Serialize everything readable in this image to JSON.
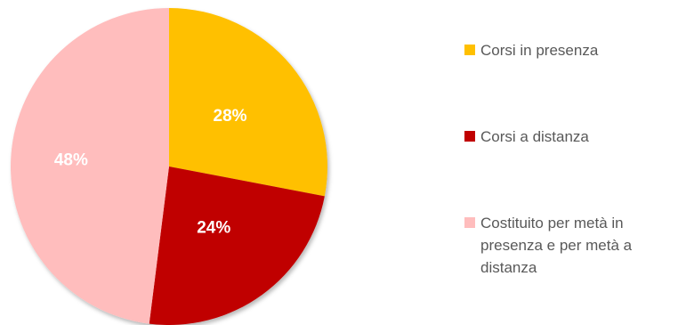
{
  "chart_data": {
    "type": "pie",
    "categories": [
      "Corsi in presenza",
      "Corsi a distanza",
      "Costituito per metà in presenza e per metà a distanza"
    ],
    "values": [
      28,
      24,
      48
    ],
    "labels": [
      "28%",
      "24%",
      "48%"
    ],
    "colors": [
      "#FFC000",
      "#C00000",
      "#FFBDBD"
    ],
    "legend_position": "right"
  },
  "legend": {
    "items": [
      "Corsi in presenza",
      "Corsi a distanza",
      "Costituito per metà in presenza e per metà a distanza"
    ]
  }
}
